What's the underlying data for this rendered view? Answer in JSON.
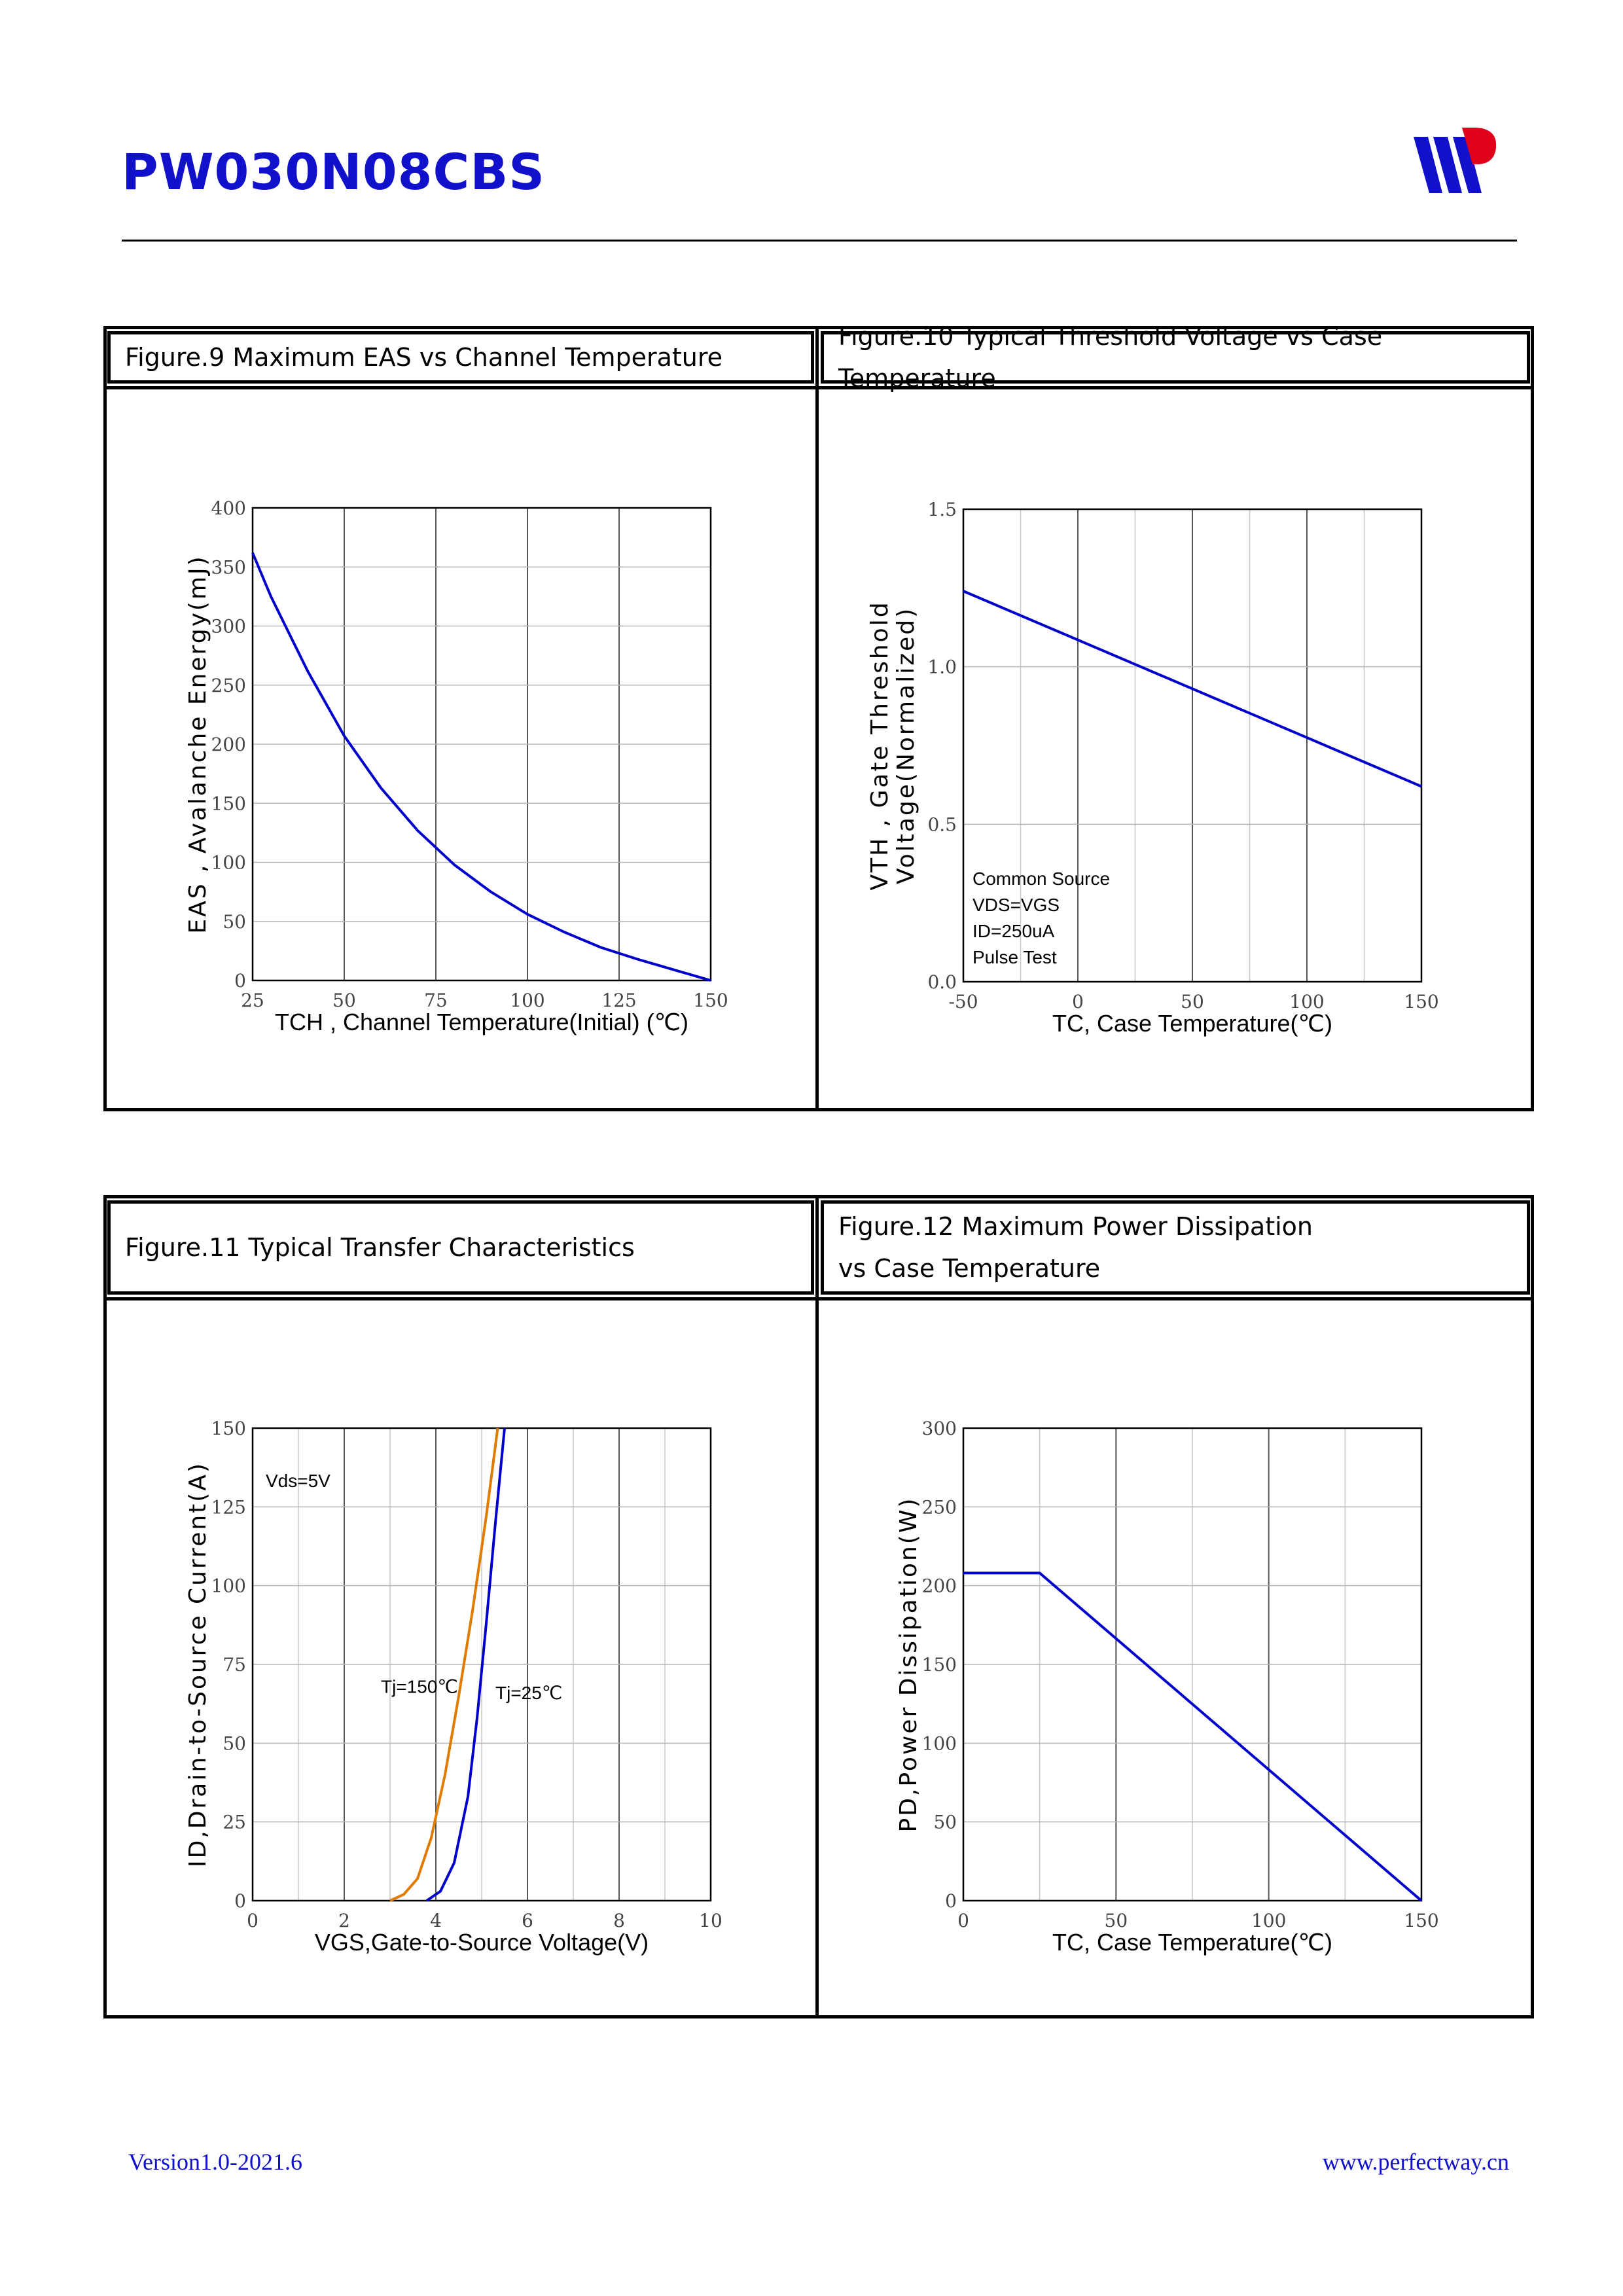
{
  "header": {
    "title": "PW030N08CBS"
  },
  "footer": {
    "version": "Version1.0-2021.6",
    "website": "www.perfectway.cn"
  },
  "colors": {
    "brand_blue": "#1111cc",
    "curve_blue": "#0000cc",
    "curve_orange": "#e07b00",
    "grid": "#bdbdbd",
    "grid_dark": "#555555"
  },
  "captions": {
    "fig9": "Figure.9 Maximum EAS vs Channel Temperature",
    "fig10": "Figure.10 Typical Threshold Voltage vs Case Temperature",
    "fig11": "Figure.11 Typical Transfer Characteristics",
    "fig12_line1": "Figure.12 Maximum Power Dissipation",
    "fig12_line2": "vs Case Temperature"
  },
  "chart_data": [
    {
      "id": "fig9",
      "type": "line",
      "xlabel": "TCH , Channel Temperature(Initial) (℃)",
      "ylabel": "EAS , Avalanche Energy(mJ)",
      "xlim": [
        25,
        150
      ],
      "ylim": [
        0,
        400
      ],
      "xticks": [
        "25",
        "50",
        "75",
        "100",
        "125",
        "150"
      ],
      "yticks": [
        "0",
        "50",
        "100",
        "150",
        "200",
        "250",
        "300",
        "350",
        "400"
      ],
      "series": [
        {
          "color": "#0000cc",
          "x": [
            25,
            30,
            40,
            50,
            60,
            70,
            80,
            90,
            100,
            110,
            120,
            130,
            140,
            150
          ],
          "y": [
            362,
            325,
            262,
            207,
            163,
            127,
            98,
            75,
            56,
            41,
            28,
            18,
            9,
            0
          ]
        }
      ],
      "annotations": []
    },
    {
      "id": "fig10",
      "type": "line",
      "xlabel": "TC, Case Temperature(℃)",
      "ylabel_line1": "VTH , Gate Threshold",
      "ylabel_line2": "Voltage(Normalized)",
      "xlim": [
        -50,
        150
      ],
      "ylim": [
        0,
        1.5
      ],
      "xticks": [
        "-50",
        "0",
        "50",
        "100",
        "150"
      ],
      "yticks": [
        "0.0",
        "0.5",
        "1.0",
        "1.5"
      ],
      "series": [
        {
          "color": "#0000cc",
          "x": [
            -50,
            150
          ],
          "y": [
            1.24,
            0.62
          ]
        }
      ],
      "annotations": [
        "Common Source",
        "VDS=VGS",
        "ID=250uA",
        "Pulse Test"
      ]
    },
    {
      "id": "fig11",
      "type": "line",
      "xlabel": "VGS,Gate-to-Source Voltage(V)",
      "ylabel": "ID,Drain-to-Source Current(A)",
      "xlim": [
        0,
        10
      ],
      "ylim": [
        0,
        150
      ],
      "xticks": [
        "0",
        "2",
        "4",
        "6",
        "8",
        "10"
      ],
      "yticks": [
        "0",
        "25",
        "50",
        "75",
        "100",
        "125",
        "150"
      ],
      "series": [
        {
          "name": "Tj=150℃",
          "color": "#e07b00",
          "x": [
            3.0,
            3.3,
            3.6,
            3.9,
            4.2,
            4.5,
            4.8,
            5.1,
            5.35
          ],
          "y": [
            0,
            2,
            7,
            20,
            40,
            65,
            92,
            122,
            150
          ]
        },
        {
          "name": "Tj=25℃",
          "color": "#0000cc",
          "x": [
            3.8,
            4.1,
            4.4,
            4.7,
            4.9,
            5.1,
            5.3,
            5.5
          ],
          "y": [
            0,
            3,
            12,
            33,
            58,
            88,
            120,
            150
          ]
        }
      ],
      "annotations": [
        "Vds=5V"
      ]
    },
    {
      "id": "fig12",
      "type": "line",
      "xlabel": "TC, Case Temperature(℃)",
      "ylabel": "PD,Power Dissipation(W)",
      "xlim": [
        0,
        150
      ],
      "ylim": [
        0,
        300
      ],
      "xticks": [
        "0",
        "50",
        "100",
        "150"
      ],
      "yticks": [
        "0",
        "50",
        "100",
        "150",
        "200",
        "250",
        "300"
      ],
      "series": [
        {
          "color": "#0000cc",
          "x": [
            0,
            25,
            150
          ],
          "y": [
            208,
            208,
            0
          ]
        }
      ],
      "annotations": []
    }
  ]
}
